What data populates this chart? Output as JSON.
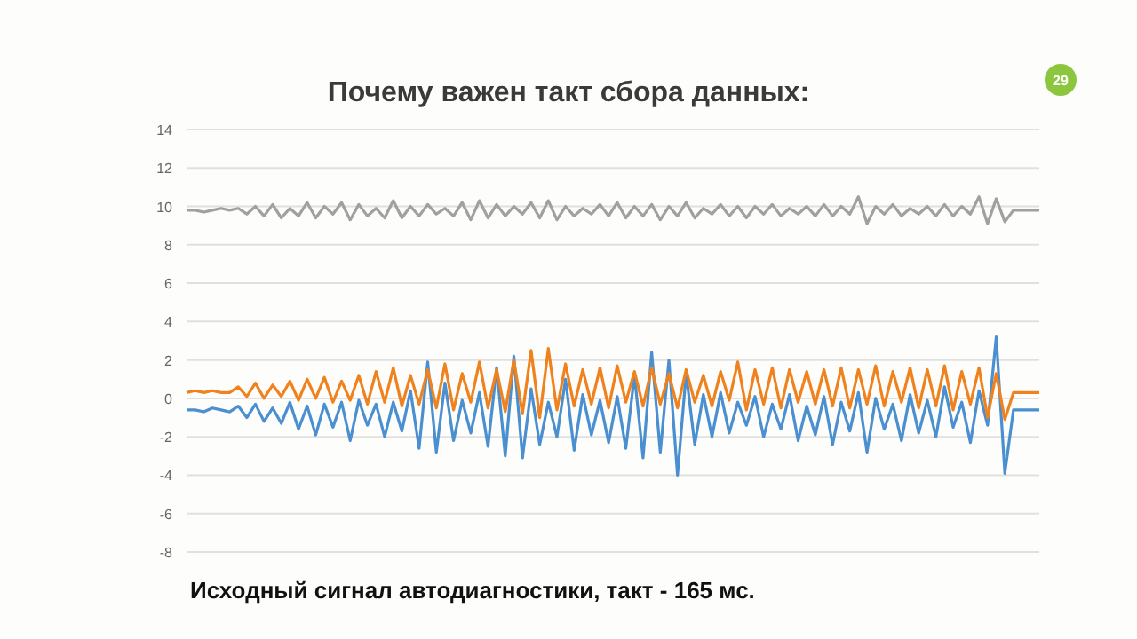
{
  "chart_data": {
    "type": "line",
    "title": "Почему важен такт сбора данных:",
    "annotations": [
      "Исходный сигнал автодиагностики,  такт - 165 мс.",
      "29"
    ],
    "categories": [
      null,
      null,
      null,
      null,
      null,
      null,
      null,
      null,
      null,
      null,
      null,
      null,
      null,
      null,
      null,
      null,
      null,
      null,
      null,
      null,
      null,
      null,
      null,
      null,
      null,
      null,
      null,
      null,
      null,
      null,
      null,
      null,
      null,
      null,
      null,
      null,
      null,
      null,
      null,
      null,
      null,
      null,
      null,
      null,
      null,
      null,
      null,
      null,
      null,
      null,
      null,
      null,
      null,
      null,
      null,
      null,
      null,
      null,
      null,
      null,
      null,
      null,
      null,
      null,
      null,
      null,
      null,
      null,
      null,
      null,
      null,
      null,
      null,
      null,
      null,
      null,
      null,
      null,
      null,
      null,
      null,
      null,
      null,
      null,
      null,
      null,
      null,
      null,
      null,
      null,
      null,
      null,
      null,
      null,
      null,
      null,
      null,
      null,
      null,
      null
    ],
    "ylim": [
      -8,
      14
    ],
    "yticks": [
      -8,
      -6,
      -4,
      -2,
      0,
      2,
      4,
      6,
      8,
      10,
      12,
      14
    ],
    "grid": "y",
    "marker": "none",
    "line_style": "solid",
    "tick_labels": "y",
    "series": [
      {
        "color": "#a0a0a0",
        "values": [
          9.8,
          9.8,
          9.7,
          9.8,
          9.9,
          9.8,
          9.9,
          9.6,
          10.0,
          9.5,
          10.1,
          9.4,
          9.9,
          9.5,
          10.2,
          9.4,
          10.0,
          9.6,
          10.2,
          9.3,
          10.1,
          9.5,
          9.9,
          9.4,
          10.3,
          9.4,
          10.0,
          9.5,
          10.1,
          9.6,
          9.9,
          9.5,
          10.2,
          9.3,
          10.3,
          9.4,
          10.1,
          9.5,
          10.0,
          9.6,
          10.2,
          9.4,
          10.3,
          9.3,
          10.0,
          9.5,
          9.9,
          9.6,
          10.1,
          9.5,
          10.2,
          9.4,
          10.0,
          9.5,
          10.1,
          9.3,
          10.0,
          9.5,
          10.2,
          9.4,
          9.9,
          9.6,
          10.1,
          9.5,
          10.0,
          9.4,
          10.0,
          9.6,
          10.1,
          9.5,
          9.9,
          9.6,
          10.0,
          9.5,
          10.1,
          9.5,
          10.0,
          9.6,
          10.5,
          9.1,
          10.0,
          9.6,
          10.1,
          9.5,
          9.9,
          9.6,
          10.0,
          9.5,
          10.1,
          9.5,
          10.0,
          9.6,
          10.5,
          9.1,
          10.4,
          9.2,
          9.8,
          9.8,
          9.8,
          9.8
        ]
      },
      {
        "color": "#4a8fd0",
        "values": [
          -0.6,
          -0.6,
          -0.7,
          -0.5,
          -0.6,
          -0.7,
          -0.4,
          -1.0,
          -0.3,
          -1.2,
          -0.5,
          -1.3,
          -0.2,
          -1.6,
          -0.4,
          -1.9,
          -0.3,
          -1.5,
          -0.2,
          -2.2,
          -0.1,
          -1.4,
          -0.3,
          -2.0,
          -0.2,
          -1.7,
          0.4,
          -2.6,
          1.9,
          -2.8,
          0.8,
          -2.2,
          -0.1,
          -1.8,
          0.3,
          -2.5,
          1.6,
          -3.0,
          2.2,
          -3.1,
          0.5,
          -2.4,
          -0.2,
          -2.0,
          1.0,
          -2.7,
          0.2,
          -1.9,
          -0.1,
          -2.3,
          0.1,
          -2.6,
          1.2,
          -3.1,
          2.4,
          -2.8,
          2.0,
          -4.0,
          1.3,
          -2.4,
          0.2,
          -2.0,
          0.3,
          -1.8,
          -0.2,
          -1.4,
          0.1,
          -2.0,
          -0.3,
          -1.6,
          0.2,
          -2.2,
          -0.4,
          -1.9,
          0.1,
          -2.4,
          -0.2,
          -1.7,
          0.3,
          -2.8,
          0.0,
          -1.6,
          -0.3,
          -2.2,
          0.2,
          -1.8,
          -0.1,
          -2.0,
          0.6,
          -1.5,
          -0.2,
          -2.3,
          0.4,
          -1.4,
          3.2,
          -3.9,
          -0.6,
          -0.6,
          -0.6,
          -0.6
        ]
      },
      {
        "color": "#f0821e",
        "values": [
          0.3,
          0.4,
          0.3,
          0.4,
          0.3,
          0.3,
          0.6,
          0.1,
          0.8,
          0.0,
          0.7,
          0.1,
          0.9,
          -0.1,
          1.0,
          0.0,
          1.1,
          -0.2,
          0.9,
          -0.1,
          1.2,
          -0.3,
          1.4,
          -0.2,
          1.6,
          -0.4,
          1.2,
          -0.3,
          1.5,
          -0.5,
          1.8,
          -0.6,
          1.3,
          -0.2,
          1.9,
          -0.5,
          1.5,
          -0.7,
          2.0,
          -0.8,
          2.5,
          -1.0,
          2.6,
          -0.6,
          1.8,
          -0.4,
          1.5,
          -0.3,
          1.6,
          -0.5,
          1.7,
          -0.2,
          1.4,
          -0.4,
          1.6,
          -0.3,
          1.3,
          -0.5,
          1.5,
          -0.2,
          1.2,
          -0.4,
          1.4,
          -0.1,
          1.9,
          -0.6,
          1.5,
          -0.3,
          1.6,
          -0.5,
          1.5,
          -0.2,
          1.4,
          -0.3,
          1.5,
          -0.4,
          1.6,
          -0.5,
          1.5,
          -0.3,
          1.7,
          -0.4,
          1.4,
          -0.2,
          1.6,
          -0.5,
          1.5,
          -0.4,
          1.7,
          -0.6,
          1.4,
          -0.3,
          1.6,
          -1.0,
          1.3,
          -1.1,
          0.3,
          0.3,
          0.3,
          0.3
        ]
      }
    ]
  }
}
